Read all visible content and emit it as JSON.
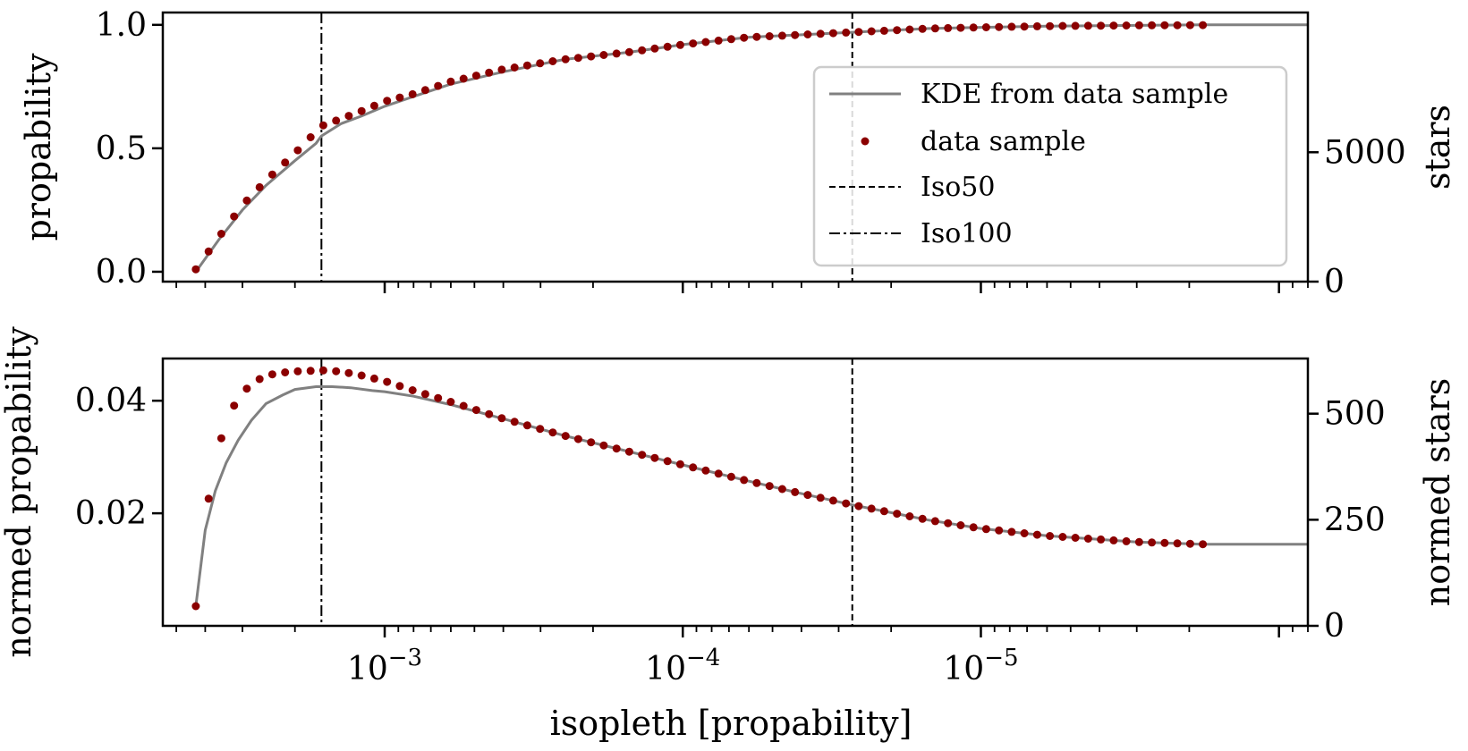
{
  "chart_data": [
    {
      "type": "line",
      "panel": "top",
      "xscale": "log",
      "xaxis_reversed": true,
      "xlim": [
        0.00555,
        8e-07
      ],
      "ylim": [
        -0.04,
        1.05
      ],
      "ylabel": "propability",
      "y2label": "stars",
      "y2lim": [
        0,
        10400
      ],
      "y2ticks": [
        0,
        5000
      ],
      "yticks": [
        0.0,
        0.5,
        1.0
      ],
      "ytick_labels": [
        "0.0",
        "0.5",
        "1.0"
      ],
      "vlines": [
        {
          "name": "Iso50",
          "x": 2.7e-05,
          "style": "dashed"
        },
        {
          "name": "Iso100",
          "x": 0.00163,
          "style": "dashdot"
        }
      ],
      "legend": {
        "placement": "upper right",
        "entries": [
          {
            "label": "KDE from data sample",
            "kind": "line",
            "color": "#808080"
          },
          {
            "label": "data sample",
            "kind": "marker",
            "color": "#8b0000"
          },
          {
            "label": "Iso50",
            "kind": "dashed",
            "color": "#000000"
          },
          {
            "label": "Iso100",
            "kind": "dashdot",
            "color": "#000000"
          }
        ]
      },
      "series": [
        {
          "name": "KDE from data sample",
          "color": "#808080",
          "x": [
            0.0043,
            0.0036,
            0.003,
            0.0025,
            0.002,
            0.0017,
            0.00163,
            0.0014,
            0.0012,
            0.001,
            0.0008,
            0.0006,
            0.0004,
            0.00025,
            0.00015,
            0.0001,
            6e-05,
            4e-05,
            2.7e-05,
            1.5e-05,
            1e-05,
            6e-06,
            3e-06,
            1.8e-06,
            8e-07
          ],
          "y": [
            0.0,
            0.13,
            0.25,
            0.35,
            0.45,
            0.52,
            0.55,
            0.6,
            0.63,
            0.67,
            0.71,
            0.76,
            0.81,
            0.86,
            0.89,
            0.92,
            0.95,
            0.96,
            0.97,
            0.985,
            0.99,
            0.995,
            0.998,
            1.0,
            1.0
          ]
        },
        {
          "name": "data sample",
          "color": "#8b0000",
          "x_start": 0.0043,
          "x_end": 1.8e-06,
          "count": 80,
          "anchors_x": [
            0.0043,
            0.0036,
            0.003,
            0.0025,
            0.002,
            0.00163,
            0.0014,
            0.0012,
            0.001,
            0.0008,
            0.0006,
            0.0004,
            0.00025,
            0.00015,
            0.0001,
            6e-05,
            4e-05,
            2.7e-05,
            1.5e-05,
            1e-05,
            6e-06,
            3e-06,
            1.8e-06
          ],
          "anchors_y": [
            0.01,
            0.14,
            0.27,
            0.37,
            0.48,
            0.59,
            0.62,
            0.65,
            0.69,
            0.72,
            0.77,
            0.82,
            0.86,
            0.89,
            0.92,
            0.95,
            0.96,
            0.97,
            0.985,
            0.99,
            0.995,
            0.998,
            0.999
          ]
        }
      ]
    },
    {
      "type": "line",
      "panel": "bottom",
      "xscale": "log",
      "xaxis_reversed": true,
      "xlim": [
        0.00555,
        8e-07
      ],
      "ylim": [
        0.0,
        0.0475
      ],
      "xlabel": "isopleth [propability]",
      "ylabel": "normed propability",
      "y2label": "normed stars",
      "y2lim": [
        0,
        630
      ],
      "y2ticks": [
        0,
        250,
        500
      ],
      "yticks": [
        0.02,
        0.04
      ],
      "ytick_labels": [
        "0.02",
        "0.04"
      ],
      "xticks": [
        0.001,
        0.0001,
        1e-05
      ],
      "xtick_labels": [
        {
          "base": "10",
          "exp": "−3"
        },
        {
          "base": "10",
          "exp": "−4"
        },
        {
          "base": "10",
          "exp": "−5"
        }
      ],
      "vlines": [
        {
          "name": "Iso50",
          "x": 2.7e-05,
          "style": "dashed"
        },
        {
          "name": "Iso100",
          "x": 0.00163,
          "style": "dashdot"
        }
      ],
      "series": [
        {
          "name": "KDE from data sample",
          "color": "#808080",
          "x": [
            0.0043,
            0.004,
            0.0037,
            0.0034,
            0.0031,
            0.0028,
            0.0025,
            0.0022,
            0.002,
            0.0017,
            0.0015,
            0.0013,
            0.0011,
            0.001,
            0.0008,
            0.0006,
            0.0004,
            0.00025,
            0.00015,
            0.0001,
            6e-05,
            4e-05,
            2.7e-05,
            1.5e-05,
            1e-05,
            6e-06,
            3e-06,
            1.8e-06,
            8e-07
          ],
          "y": [
            0.0035,
            0.017,
            0.024,
            0.029,
            0.033,
            0.0365,
            0.0395,
            0.041,
            0.042,
            0.0425,
            0.0425,
            0.0423,
            0.0418,
            0.0416,
            0.0408,
            0.0393,
            0.0368,
            0.0338,
            0.0309,
            0.0286,
            0.0257,
            0.0235,
            0.0215,
            0.0188,
            0.0173,
            0.016,
            0.0149,
            0.0145,
            0.0145
          ]
        },
        {
          "name": "data sample",
          "color": "#8b0000",
          "x_start": 0.0043,
          "x_end": 1.8e-06,
          "count": 80,
          "anchors_x": [
            0.0043,
            0.0039,
            0.0036,
            0.0033,
            0.003,
            0.0027,
            0.0025,
            0.0022,
            0.002,
            0.0018,
            0.00163,
            0.0014,
            0.0012,
            0.001,
            0.0008,
            0.0006,
            0.0004,
            0.00025,
            0.00015,
            0.0001,
            6e-05,
            4e-05,
            2.7e-05,
            1.5e-05,
            1e-05,
            6e-06,
            3e-06,
            1.8e-06
          ],
          "anchors_y": [
            0.0035,
            0.0225,
            0.032,
            0.038,
            0.0415,
            0.0435,
            0.0445,
            0.045,
            0.0452,
            0.0453,
            0.0454,
            0.0452,
            0.0445,
            0.0435,
            0.0418,
            0.0398,
            0.0368,
            0.0338,
            0.0309,
            0.0286,
            0.0257,
            0.0235,
            0.0215,
            0.0188,
            0.0173,
            0.016,
            0.0149,
            0.0145
          ]
        }
      ]
    }
  ]
}
